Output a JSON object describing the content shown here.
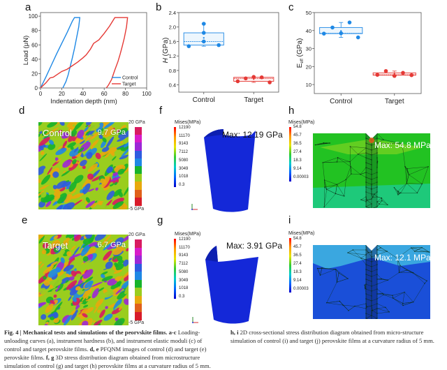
{
  "figure": {
    "panels": {
      "a": "a",
      "b": "b",
      "c": "c",
      "d": "d",
      "e": "e",
      "f": "f",
      "g": "g",
      "h": "h",
      "i": "i"
    }
  },
  "chart_data": [
    {
      "id": "a",
      "type": "line",
      "title": "",
      "xlabel": "Indentation depth (nm)",
      "ylabel": "Load (μN)",
      "xlim": [
        0,
        100
      ],
      "ylim": [
        0,
        105
      ],
      "xticks": [
        "0",
        "20",
        "40",
        "60",
        "80",
        "100"
      ],
      "yticks": [
        "0",
        "20",
        "40",
        "60",
        "80",
        "100"
      ],
      "legend_position": "bottom-right",
      "series": [
        {
          "name": "Control",
          "color": "#1e88e5",
          "x": [
            0,
            5,
            10,
            15,
            20,
            25,
            30,
            32,
            37,
            36,
            34,
            32,
            30,
            28,
            26,
            24,
            22,
            21
          ],
          "y": [
            0,
            15,
            31,
            47,
            62,
            77,
            93,
            98,
            98,
            85,
            70,
            55,
            42,
            30,
            18,
            9,
            3,
            0
          ]
        },
        {
          "name": "Target",
          "color": "#e53935",
          "x": [
            0,
            5,
            9,
            12,
            16,
            20,
            25,
            30,
            35,
            40,
            43,
            47,
            50,
            55,
            60,
            65,
            70,
            82,
            81,
            79,
            77,
            75,
            73,
            70,
            67,
            64,
            62
          ],
          "y": [
            0,
            7,
            14,
            15,
            19,
            23,
            26,
            31,
            36,
            42,
            46,
            54,
            62,
            67,
            76,
            86,
            98,
            98,
            85,
            70,
            58,
            47,
            37,
            25,
            12,
            4,
            0
          ]
        }
      ]
    },
    {
      "id": "b",
      "type": "box",
      "ylabel": "H (GPa)",
      "ylim": [
        0.2,
        2.4
      ],
      "yticks": [
        "0.4",
        "0.8",
        "1.2",
        "1.6",
        "2.0",
        "2.4"
      ],
      "categories": [
        "Control",
        "Target"
      ],
      "series": [
        {
          "name": "Control",
          "color": "#1e88e5",
          "points": [
            1.47,
            2.09,
            1.84,
            1.6,
            1.5
          ],
          "box": {
            "q1": 1.5,
            "median": 1.6,
            "q3": 1.84,
            "mean": 1.7,
            "whisker_low": 1.47,
            "whisker_high": 2.09
          }
        },
        {
          "name": "Target",
          "color": "#e53935",
          "points": [
            0.5,
            0.58,
            0.62,
            0.61,
            0.47
          ],
          "box": {
            "q1": 0.5,
            "median": 0.58,
            "q3": 0.61,
            "mean": 0.56,
            "whisker_low": 0.47,
            "whisker_high": 0.62
          }
        }
      ]
    },
    {
      "id": "c",
      "type": "box",
      "ylabel": "E_eff (GPa)",
      "ylabel_main": "E",
      "ylabel_sub": "eff",
      "ylabel_unit": " (GPa)",
      "ylim": [
        5,
        50
      ],
      "yticks": [
        "10",
        "20",
        "30",
        "40",
        "50"
      ],
      "categories": [
        "Control",
        "Target"
      ],
      "series": [
        {
          "name": "Control",
          "color": "#1e88e5",
          "points": [
            38.3,
            41.7,
            38.5,
            44.5,
            36.2
          ],
          "box": {
            "q1": 38.3,
            "median": 38.5,
            "q3": 41.7,
            "mean": 39.8,
            "whisker_low": 36.2,
            "whisker_high": 44.5
          }
        },
        {
          "name": "Target",
          "color": "#e53935",
          "points": [
            15.4,
            17.5,
            14.8,
            16.5,
            15.2
          ],
          "box": {
            "q1": 15.2,
            "median": 15.4,
            "q3": 16.5,
            "mean": 15.9,
            "whisker_low": 14.8,
            "whisker_high": 17.5
          }
        }
      ]
    }
  ],
  "afm": {
    "d": {
      "label": "Control",
      "value": "9.7 GPa",
      "cbar_max": "20 GPa",
      "cbar_min": "-5 GPa"
    },
    "e": {
      "label": "Target",
      "value": "6.7 GPa",
      "cbar_max": "20 GPa",
      "cbar_min": "-5 GPa"
    },
    "colorbar_colors": [
      "#d81b60",
      "#d81bc8",
      "#9c27d6",
      "#2e5be0",
      "#1e88e5",
      "#17b32a",
      "#9acd1e",
      "#e8a90c",
      "#e0601a",
      "#d81b2a"
    ]
  },
  "fem3d": {
    "title": "Mises(MPa)",
    "ticks": [
      "12190",
      "11170",
      "9143",
      "7112",
      "5080",
      "3049",
      "1018",
      "0.3"
    ],
    "f": {
      "max": "Max: 12.19 GPa"
    },
    "g": {
      "max": "Max: 3.91 GPa"
    }
  },
  "fem2d": {
    "title": "Mises(MPa)",
    "ticks": [
      "54.8",
      "45.7",
      "36.5",
      "27.4",
      "18.3",
      "9.14",
      "0.00003"
    ],
    "h": {
      "max": "Max: 54.8 MPa"
    },
    "i": {
      "max": "Max: 12.1 MPa"
    }
  },
  "caption": {
    "fig_label": "Fig. 4 | Mechanical tests and simulations of the peorvskite films.",
    "p1_bold": "a-c",
    "p1": " Loading-unloading curves (a), instrument hardness (b), and instrument elastic moduli (c) of control and target perovskite films.",
    "p2_bold": "d, e",
    "p2": " PFQNM images of control (d) and target (e) perovskite films.",
    "p3_bold": "f, g",
    "p3": " 3D stress distribution diagram obtained from microstructure simulation of control (g) and target (h) perovskite films at a curvature radius of 5 mm.",
    "p4_bold": "h, i",
    "p4": " 2D cross-sectional stress distribution diagram obtained from micro-structure simulation of control (i) and target (j) perovskite films at a curvature radius of 5 mm."
  }
}
